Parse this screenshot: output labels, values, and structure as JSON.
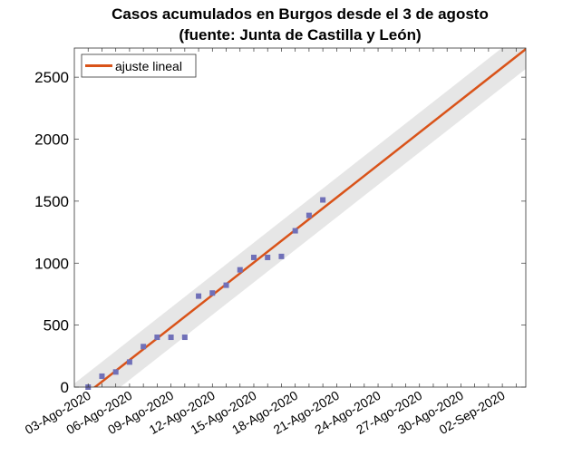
{
  "chart_data": {
    "type": "scatter",
    "title": [
      "Casos acumulados en Burgos desde el 3 de agosto",
      "(fuente: Junta de Castilla y León)"
    ],
    "xlabel": "",
    "ylabel": "",
    "x_tick_labels": [
      "03-Ago-2020",
      "06-Ago-2020",
      "09-Ago-2020",
      "12-Ago-2020",
      "15-Ago-2020",
      "18-Ago-2020",
      "21-Ago-2020",
      "24-Ago-2020",
      "27-Ago-2020",
      "30-Ago-2020",
      "02-Sep-2020"
    ],
    "x_tick_days": [
      0,
      3,
      6,
      9,
      12,
      15,
      18,
      21,
      24,
      27,
      30
    ],
    "xlim_days": [
      -1,
      31.7
    ],
    "ylim": [
      0,
      2735
    ],
    "y_ticks": [
      0,
      500,
      1000,
      1500,
      2000,
      2500
    ],
    "x_days": [
      0,
      1,
      2,
      3,
      4,
      5,
      6,
      7,
      8,
      9,
      10,
      11,
      12,
      13,
      14,
      15,
      16,
      17
    ],
    "values": [
      0,
      88,
      122,
      202,
      327,
      402,
      402,
      402,
      734,
      759,
      822,
      946,
      1046,
      1046,
      1054,
      1261,
      1385,
      1510
    ],
    "fit": {
      "name": "ajuste lineal",
      "slope_per_day": 87.4,
      "zero_day": 0.5,
      "band_halfwidth": 160,
      "color": "#d95319"
    },
    "marker_color": "#7070b8",
    "legend": {
      "label": "ajuste lineal",
      "placement": "top-left"
    },
    "grid": false
  }
}
